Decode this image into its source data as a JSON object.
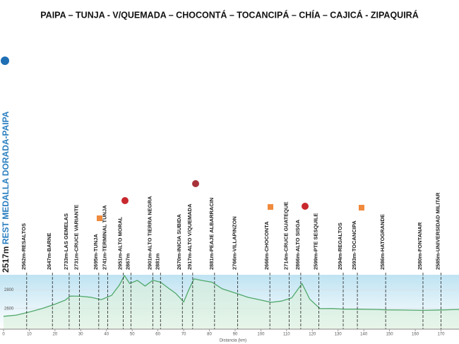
{
  "chart_data": {
    "type": "area",
    "title": "PAIPA – TUNJA - V/QUEMADA – CHOCONTÁ – TOCANCIPÁ – CHÍA – CAJICÁ - ZIPAQUIRÁ",
    "start_elevation": "2517m",
    "start_name": "REST MEDALLA DORADA-PAIPA",
    "x_label": "Distancia (km)",
    "xlim": [
      0,
      177
    ],
    "xticks": [
      0,
      10,
      20,
      30,
      40,
      50,
      60,
      70,
      80,
      90,
      100,
      110,
      120,
      130,
      140,
      150,
      160,
      170
    ],
    "ylim": [
      2380,
      2960
    ],
    "yticks": [
      2600,
      2800
    ],
    "color": "#4fa86a",
    "x": [
      0,
      5,
      10,
      15,
      20,
      24,
      26,
      30,
      34,
      38,
      42,
      45,
      47,
      49,
      52,
      55,
      58,
      61,
      64,
      67,
      70,
      72,
      74,
      77,
      81,
      85,
      90,
      95,
      100,
      104,
      108,
      112,
      116,
      119,
      123,
      128,
      132,
      138,
      145,
      149,
      155,
      163,
      170,
      177
    ],
    "values": [
      2517,
      2530,
      2562,
      2600,
      2647,
      2690,
      2733,
      2731,
      2720,
      2695,
      2741,
      2850,
      2951,
      2867,
      2900,
      2840,
      2901,
      2881,
      2820,
      2760,
      2670,
      2800,
      2917,
      2900,
      2881,
      2810,
      2766,
      2720,
      2690,
      2666,
      2680,
      2714,
      2866,
      2700,
      2599,
      2600,
      2594,
      2593,
      2590,
      2586,
      2584,
      2580,
      2585,
      2590
    ],
    "waypoints": [
      {
        "label": "2562m-RESALTOS",
        "km": 9
      },
      {
        "label": "2647m-BARNE",
        "km": 19
      },
      {
        "label": "2733m-LAS GEMELAS",
        "km": 25.5
      },
      {
        "label": "2731m-CRUCE VARIANTE",
        "km": 29.5
      },
      {
        "label": "2695m-TUNJA",
        "km": 37
      },
      {
        "label": "2741m-TERMINAL TUNJA",
        "km": 40.5
      },
      {
        "label": "2951m-ALTO MORAL",
        "km": 46.5
      },
      {
        "label": "2867m",
        "km": 49.5
      },
      {
        "label": "2901m-ALTO TIERRA NEGRA",
        "km": 58
      },
      {
        "label": "2881m",
        "km": 61
      },
      {
        "label": "2670m-INICIA SUBIDA",
        "km": 69.5
      },
      {
        "label": "2917m-ALTO V/QUEMADA",
        "km": 73.5
      },
      {
        "label": "2881m-PEAJE ALBARRACIN",
        "km": 82
      },
      {
        "label": "2766m-VILLAPINZON",
        "km": 91
      },
      {
        "label": "2666m-CHOCONTA",
        "km": 103.5
      },
      {
        "label": "2714m-CRUCE GUATEQUE",
        "km": 111
      },
      {
        "label": "2866m-ALTO SISGA",
        "km": 115.5
      },
      {
        "label": "2599m-PTE SESQUILE",
        "km": 122.5
      },
      {
        "label": "2594m-REGALTOS",
        "km": 132
      },
      {
        "label": "2593m-TOCANCIPA",
        "km": 137.5
      },
      {
        "label": "2586m-HATOGRANDE",
        "km": 148.5
      },
      {
        "label": "2580m-FONTANAR",
        "km": 163
      },
      {
        "label": "2585m-UNIVERSIDAD  MILITAR",
        "km": 170
      }
    ]
  }
}
